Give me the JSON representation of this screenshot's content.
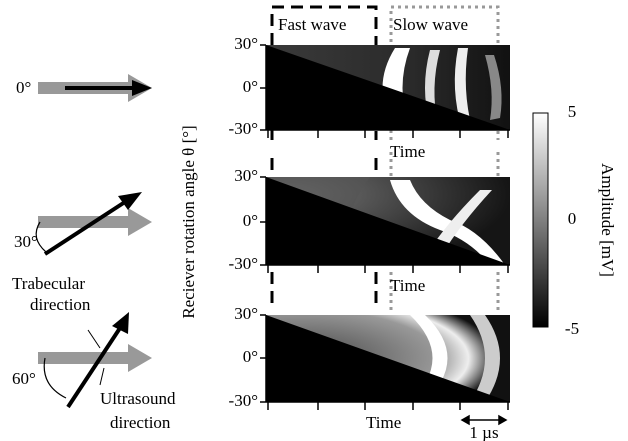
{
  "header": {
    "fast_wave": "Fast wave",
    "slow_wave": "Slow wave"
  },
  "panels": [
    {
      "angle": "0°",
      "yticks": [
        "30°",
        "0°",
        "-30°"
      ],
      "xlabel": "Time"
    },
    {
      "angle": "30°",
      "yticks": [
        "30°",
        "0°",
        "-30°"
      ],
      "xlabel": "Time"
    },
    {
      "angle": "60°",
      "yticks": [
        "30°",
        "0°",
        "-30°"
      ],
      "xlabel": "Time"
    }
  ],
  "annotations": {
    "trabecular": [
      "Trabecular",
      "direction"
    ],
    "ultrasound": [
      "Ultrasound",
      "direction"
    ]
  },
  "ylabel": "Reciever rotation angle θ [°]",
  "scale_bar": "1 µs",
  "colorbar": {
    "label": "Amplitude [mV]",
    "ticks": [
      5,
      0,
      -5
    ]
  }
}
